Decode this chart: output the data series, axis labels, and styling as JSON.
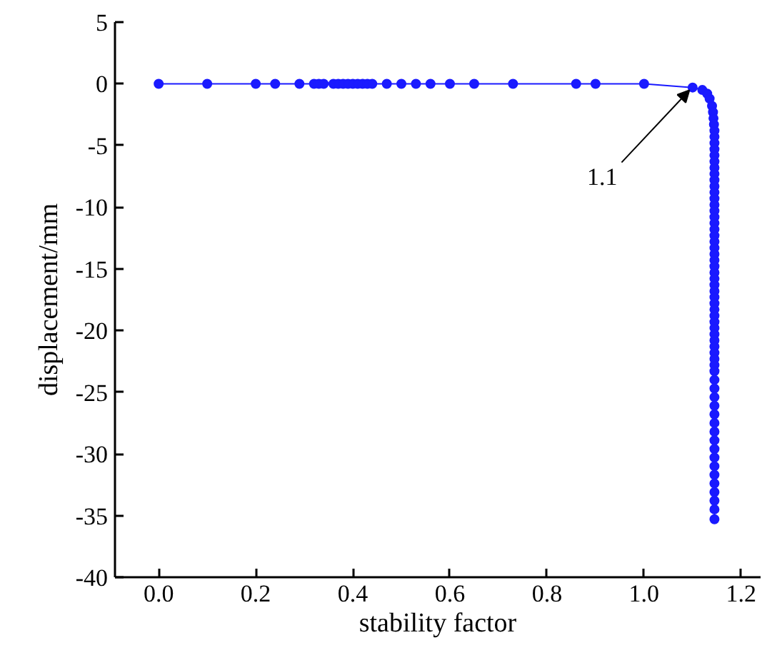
{
  "chart_data": {
    "type": "line",
    "xlabel": "stability factor",
    "ylabel": "displacement/mm",
    "xlim": [
      -0.09,
      1.24
    ],
    "ylim": [
      -40,
      5
    ],
    "xticks": [
      {
        "value": 0,
        "label": "0.0"
      },
      {
        "value": 0.2,
        "label": "0.2"
      },
      {
        "value": 0.4,
        "label": "0.4"
      },
      {
        "value": 0.6,
        "label": "0.6"
      },
      {
        "value": 0.8,
        "label": "0.8"
      },
      {
        "value": 1.0,
        "label": "1.0"
      },
      {
        "value": 1.2,
        "label": "1.2"
      }
    ],
    "yticks": [
      5,
      0,
      -5,
      -10,
      -15,
      -20,
      -25,
      -30,
      -35,
      -40
    ],
    "grid": false,
    "marker": "circle",
    "line_style": "solid",
    "annotations": [
      {
        "text": "1.1",
        "x": 1.1,
        "y": -0.3
      }
    ],
    "series": [
      {
        "color": "#1a1aff",
        "x": [
          0,
          0.1,
          0.2,
          0.24,
          0.29,
          0.32,
          0.33,
          0.34,
          0.36,
          0.37,
          0.38,
          0.39,
          0.4,
          0.41,
          0.42,
          0.43,
          0.44,
          0.47,
          0.5,
          0.53,
          0.56,
          0.6,
          0.65,
          0.73,
          0.86,
          0.9,
          1.0,
          1.1,
          1.12,
          1.13,
          1.135,
          1.14,
          1.142,
          1.143,
          1.144,
          1.145,
          1.145,
          1.145,
          1.145,
          1.145,
          1.145,
          1.145,
          1.145,
          1.145,
          1.145,
          1.145,
          1.145,
          1.145,
          1.145,
          1.145,
          1.145,
          1.145,
          1.145,
          1.145,
          1.145,
          1.145,
          1.145,
          1.145,
          1.145,
          1.145,
          1.145,
          1.145,
          1.145,
          1.145,
          1.145,
          1.145,
          1.145,
          1.145,
          1.145,
          1.145,
          1.145,
          1.145,
          1.145,
          1.145,
          1.145,
          1.145,
          1.145,
          1.145,
          1.145,
          1.145,
          1.145,
          1.145,
          1.145,
          1.145,
          1.145,
          1.145,
          1.145,
          1.145,
          1.145,
          1.145,
          1.145,
          1.145
        ],
        "values": [
          0,
          0,
          0,
          0,
          0,
          0,
          0,
          0,
          0,
          0,
          0,
          0,
          0,
          0,
          0,
          0,
          0,
          0,
          0,
          0,
          0,
          0,
          0,
          0,
          0,
          0,
          0,
          -0.3,
          -0.5,
          -0.8,
          -1.2,
          -1.8,
          -2.3,
          -2.8,
          -3.3,
          -3.8,
          -4.3,
          -4.8,
          -5.3,
          -5.8,
          -6.3,
          -6.8,
          -7.3,
          -7.8,
          -8.3,
          -8.8,
          -9.3,
          -9.8,
          -10.3,
          -10.8,
          -11.3,
          -11.8,
          -12.3,
          -12.8,
          -13.3,
          -13.8,
          -14.3,
          -14.8,
          -15.3,
          -15.8,
          -16.3,
          -16.8,
          -17.3,
          -17.8,
          -18.3,
          -18.8,
          -19.3,
          -19.8,
          -20.3,
          -20.8,
          -21.3,
          -21.8,
          -22.3,
          -22.8,
          -23.3,
          -24.0,
          -24.7,
          -25.4,
          -26.1,
          -26.8,
          -27.5,
          -28.2,
          -28.9,
          -29.6,
          -30.3,
          -31.0,
          -31.7,
          -32.4,
          -33.1,
          -33.8,
          -34.5,
          -35.3
        ]
      }
    ]
  }
}
